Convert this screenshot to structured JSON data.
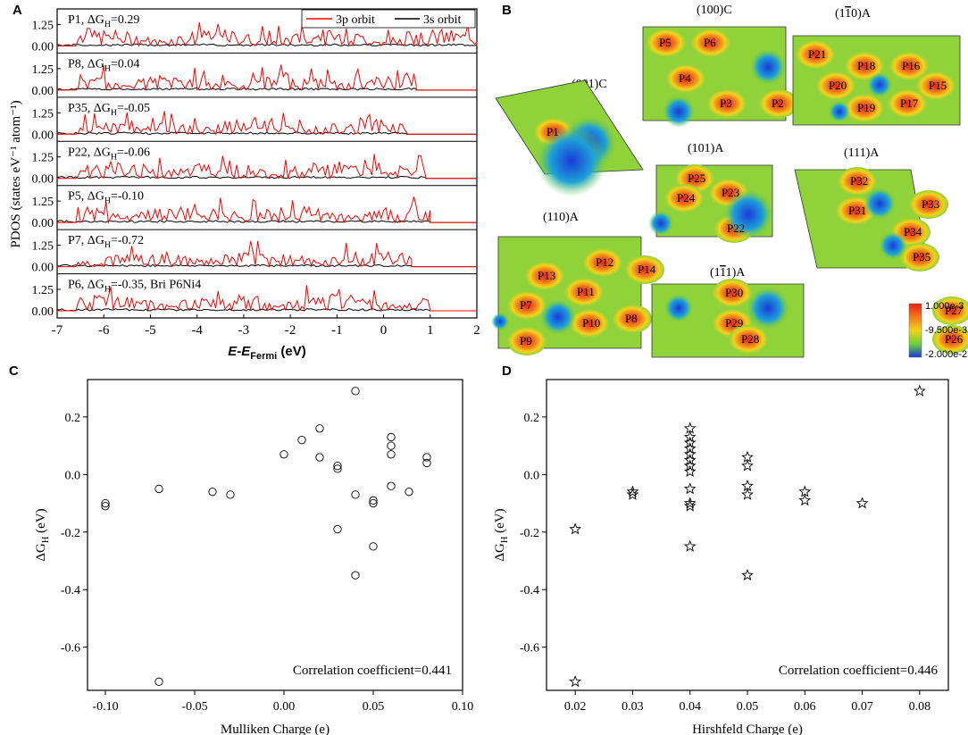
{
  "figure": {
    "panel_labels": [
      "A",
      "B",
      "C",
      "D"
    ]
  },
  "panel_a": {
    "ylabel": "PDOS (states eV⁻¹ atom⁻¹)",
    "xlabel": "E-E_Fermi (eV)",
    "xlim": [
      -7,
      2
    ],
    "xticks": [
      "-7",
      "-6",
      "-5",
      "-4",
      "-3",
      "-2",
      "-1",
      "0",
      "1",
      "2"
    ],
    "yticks": [
      "0.00",
      "1.25"
    ],
    "legend": [
      {
        "label": "3p orbit",
        "color": "#ff0000"
      },
      {
        "label": "3s orbit",
        "color": "#000000"
      }
    ],
    "rows": [
      {
        "label": "P1, ΔG_H=0.29",
        "end": 2.0
      },
      {
        "label": "P8, ΔG_H=0.04",
        "end": 0.7
      },
      {
        "label": "P35, ΔG_H=-0.05",
        "end": 0.5
      },
      {
        "label": "P22, ΔG_H=-0.06",
        "end": 0.9
      },
      {
        "label": "P5, ΔG_H=-0.10",
        "end": 1.0
      },
      {
        "label": "P7, ΔG_H=-0.72",
        "end": 0.6
      },
      {
        "label": "P6, ΔG_H=-0.35, Bri P6Ni4",
        "end": 1.0
      }
    ]
  },
  "panel_b": {
    "surfaces": [
      {
        "name": "(001)C",
        "sites": [
          "P1"
        ]
      },
      {
        "name": "(100)C",
        "sites": [
          "P5",
          "P6",
          "P4",
          "P3",
          "P2"
        ]
      },
      {
        "name": "(1-10)A",
        "sites": [
          "P21",
          "P18",
          "P16",
          "P20",
          "P15",
          "P19",
          "P17"
        ]
      },
      {
        "name": "(101)A",
        "sites": [
          "P25",
          "P24",
          "P23",
          "P22"
        ]
      },
      {
        "name": "(111)A",
        "sites": [
          "P32",
          "P31",
          "P33",
          "P34",
          "P35"
        ]
      },
      {
        "name": "(110)A",
        "sites": [
          "P13",
          "P12",
          "P14",
          "P11",
          "P7",
          "P10",
          "P8",
          "P9"
        ]
      },
      {
        "name": "(1-11)A",
        "sites": [
          "P30",
          "P29",
          "P27",
          "P28",
          "P26"
        ]
      }
    ],
    "colorbar": {
      "max": "1.000e-3",
      "mid": "-9.500e-3",
      "min": "-2.000e-2",
      "colors": [
        "#e8221e",
        "#f07a1a",
        "#f2d21c",
        "#6cd23a",
        "#1a3ad8"
      ]
    }
  },
  "chart_data": [
    {
      "panel": "C",
      "type": "scatter",
      "marker": "circle",
      "xlabel": "Mulliken Charge (e)",
      "ylabel": "ΔG_H (eV)",
      "xlim": [
        -0.11,
        0.1
      ],
      "ylim": [
        -0.75,
        0.33
      ],
      "xticks": [
        "-0.10",
        "-0.05",
        "0.00",
        "0.05",
        "0.10"
      ],
      "xtick_values": [
        -0.1,
        -0.05,
        0.0,
        0.05,
        0.1
      ],
      "yticks": [
        "-0.6",
        "-0.4",
        "-0.2",
        "0.0",
        "0.2"
      ],
      "ytick_values": [
        -0.6,
        -0.4,
        -0.2,
        0.0,
        0.2
      ],
      "annotation": "Correlation coefficient=0.441",
      "points": [
        [
          -0.1,
          -0.1
        ],
        [
          -0.1,
          -0.11
        ],
        [
          -0.07,
          -0.05
        ],
        [
          -0.07,
          -0.72
        ],
        [
          -0.04,
          -0.06
        ],
        [
          -0.03,
          -0.07
        ],
        [
          0.0,
          0.07
        ],
        [
          0.01,
          0.12
        ],
        [
          0.02,
          0.16
        ],
        [
          0.02,
          0.06
        ],
        [
          0.03,
          0.03
        ],
        [
          0.03,
          0.02
        ],
        [
          0.03,
          -0.19
        ],
        [
          0.04,
          0.29
        ],
        [
          0.04,
          -0.07
        ],
        [
          0.04,
          -0.35
        ],
        [
          0.05,
          -0.09
        ],
        [
          0.05,
          -0.1
        ],
        [
          0.05,
          -0.25
        ],
        [
          0.06,
          0.13
        ],
        [
          0.06,
          0.1
        ],
        [
          0.06,
          0.07
        ],
        [
          0.06,
          -0.04
        ],
        [
          0.07,
          -0.06
        ],
        [
          0.08,
          0.06
        ],
        [
          0.08,
          0.04
        ]
      ]
    },
    {
      "panel": "D",
      "type": "scatter",
      "marker": "star",
      "xlabel": "Hirshfeld Charge (e)",
      "ylabel": "ΔG_H (eV)",
      "xlim": [
        0.015,
        0.085
      ],
      "ylim": [
        -0.75,
        0.33
      ],
      "xticks": [
        "0.02",
        "0.03",
        "0.04",
        "0.05",
        "0.06",
        "0.07",
        "0.08"
      ],
      "xtick_values": [
        0.02,
        0.03,
        0.04,
        0.05,
        0.06,
        0.07,
        0.08
      ],
      "yticks": [
        "-0.6",
        "-0.4",
        "-0.2",
        "0.0",
        "0.2"
      ],
      "ytick_values": [
        -0.6,
        -0.4,
        -0.2,
        0.0,
        0.2
      ],
      "annotation": "Correlation coefficient=0.446",
      "points": [
        [
          0.02,
          -0.19
        ],
        [
          0.02,
          -0.72
        ],
        [
          0.03,
          -0.06
        ],
        [
          0.03,
          -0.07
        ],
        [
          0.04,
          0.16
        ],
        [
          0.04,
          0.13
        ],
        [
          0.04,
          0.11
        ],
        [
          0.04,
          0.09
        ],
        [
          0.04,
          0.07
        ],
        [
          0.04,
          0.05
        ],
        [
          0.04,
          0.03
        ],
        [
          0.04,
          0.01
        ],
        [
          0.04,
          -0.05
        ],
        [
          0.04,
          -0.1
        ],
        [
          0.04,
          -0.11
        ],
        [
          0.04,
          -0.25
        ],
        [
          0.05,
          0.06
        ],
        [
          0.05,
          0.03
        ],
        [
          0.05,
          -0.04
        ],
        [
          0.05,
          -0.07
        ],
        [
          0.05,
          -0.35
        ],
        [
          0.06,
          -0.06
        ],
        [
          0.06,
          -0.09
        ],
        [
          0.07,
          -0.1
        ],
        [
          0.08,
          0.29
        ]
      ]
    }
  ]
}
